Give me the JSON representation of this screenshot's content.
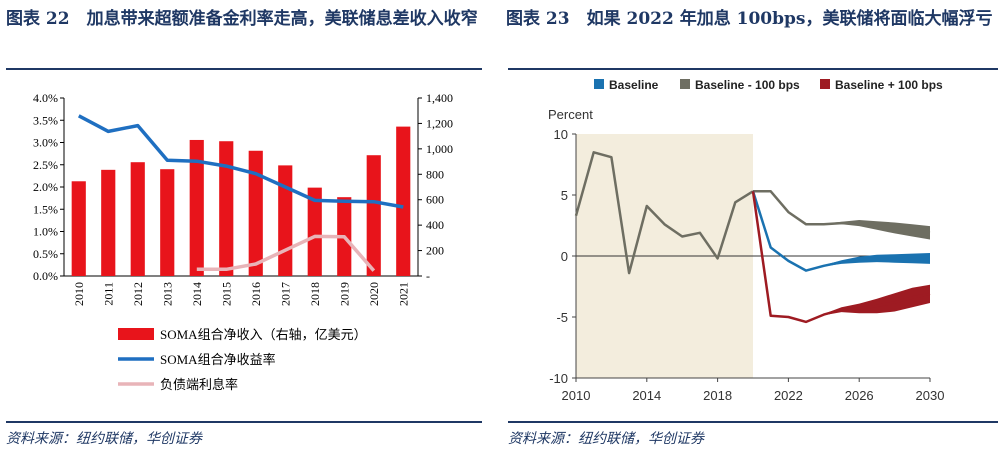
{
  "left": {
    "title": "图表 22　加息带来超额准备金利率走高，美联储息差收入收窄",
    "source": "资料来源：纽约联储，华创证券",
    "chart_data": {
      "type": "bar",
      "categories": [
        "2010",
        "2011",
        "2012",
        "2013",
        "2014",
        "2015",
        "2016",
        "2017",
        "2018",
        "2019",
        "2020",
        "2021"
      ],
      "y_left_ticks": [
        "4.0%",
        "3.5%",
        "3.0%",
        "2.5%",
        "2.0%",
        "1.5%",
        "1.0%",
        "0.5%",
        "0.0%"
      ],
      "y_right_ticks": [
        "1,400",
        "1,200",
        "1,000",
        "800",
        "600",
        "400",
        "200",
        "-"
      ],
      "ylim_left": [
        0,
        4.0
      ],
      "ylim_right": [
        0,
        1400
      ],
      "series": [
        {
          "name": "SOMA组合净收入（右轴，亿美元）",
          "kind": "bar",
          "axis": "right",
          "color": "#e8141b",
          "values": [
            745,
            835,
            895,
            840,
            1070,
            1060,
            985,
            870,
            695,
            620,
            950,
            1175
          ]
        },
        {
          "name": "SOMA组合净收益率",
          "kind": "line",
          "axis": "left",
          "color": "#1f6fc1",
          "values": [
            3.6,
            3.25,
            3.38,
            2.6,
            2.58,
            2.47,
            2.3,
            2.0,
            1.7,
            1.68,
            1.67,
            1.55
          ]
        },
        {
          "name": "负债端利息率",
          "kind": "line",
          "axis": "left",
          "color": "#e8b4b8",
          "values": [
            null,
            null,
            null,
            null,
            0.15,
            0.15,
            0.27,
            0.58,
            0.89,
            0.88,
            0.12,
            null
          ]
        }
      ],
      "legend": [
        "SOMA组合净收入（右轴，亿美元）",
        "SOMA组合净收益率",
        "负债端利息率"
      ]
    }
  },
  "right": {
    "title": "图表 23　如果 2022 年加息 100bps，美联储将面临大幅浮亏",
    "source": "资料来源：纽约联储，华创证券",
    "chart_data": {
      "type": "line",
      "ylabel": "Percent",
      "ylim": [
        -10,
        10
      ],
      "xlim": [
        2010,
        2030
      ],
      "y_ticks": [
        "10",
        "5",
        "0",
        "-5",
        "-10"
      ],
      "x_ticks": [
        "2010",
        "2014",
        "2018",
        "2022",
        "2026",
        "2030"
      ],
      "shaded_history_until": 2020,
      "legend": [
        {
          "name": "Baseline",
          "color": "#1a72b0"
        },
        {
          "name": "Baseline - 100 bps",
          "color": "#6e6e62"
        },
        {
          "name": "Baseline + 100 bps",
          "color": "#9e1b22"
        }
      ],
      "history": {
        "color": "#6e6e62",
        "x": [
          2010,
          2011,
          2012,
          2013,
          2014,
          2015,
          2016,
          2017,
          2018,
          2019,
          2020
        ],
        "y": [
          3.3,
          8.5,
          8.1,
          -1.4,
          4.1,
          2.6,
          1.6,
          1.9,
          -0.2,
          4.4,
          5.3
        ]
      },
      "series": [
        {
          "name": "Baseline - 100 bps",
          "color": "#6e6e62",
          "x": [
            2020,
            2021,
            2022,
            2023,
            2024,
            2025,
            2026,
            2027,
            2028,
            2029,
            2030
          ],
          "y": [
            5.3,
            5.3,
            3.6,
            2.6,
            2.6,
            2.7,
            2.7,
            2.5,
            2.3,
            2.1,
            1.9
          ],
          "band": [
            0,
            0,
            0,
            0,
            0.05,
            0.1,
            0.25,
            0.35,
            0.45,
            0.5,
            0.55
          ]
        },
        {
          "name": "Baseline",
          "color": "#1a72b0",
          "x": [
            2020,
            2021,
            2022,
            2023,
            2024,
            2025,
            2026,
            2027,
            2028,
            2029,
            2030
          ],
          "y": [
            5.3,
            0.7,
            -0.4,
            -1.2,
            -0.8,
            -0.5,
            -0.3,
            -0.2,
            -0.2,
            -0.2,
            -0.2
          ],
          "band": [
            0,
            0,
            0,
            0,
            0.05,
            0.15,
            0.25,
            0.3,
            0.35,
            0.4,
            0.45
          ]
        },
        {
          "name": "Baseline + 100 bps",
          "color": "#9e1b22",
          "x": [
            2020,
            2021,
            2022,
            2023,
            2024,
            2025,
            2026,
            2027,
            2028,
            2029,
            2030
          ],
          "y": [
            5.3,
            -4.9,
            -5.0,
            -5.4,
            -4.8,
            -4.4,
            -4.3,
            -4.1,
            -3.8,
            -3.4,
            -3.1
          ],
          "band": [
            0,
            0,
            0,
            0,
            0.05,
            0.2,
            0.4,
            0.6,
            0.75,
            0.8,
            0.75
          ]
        }
      ]
    }
  }
}
